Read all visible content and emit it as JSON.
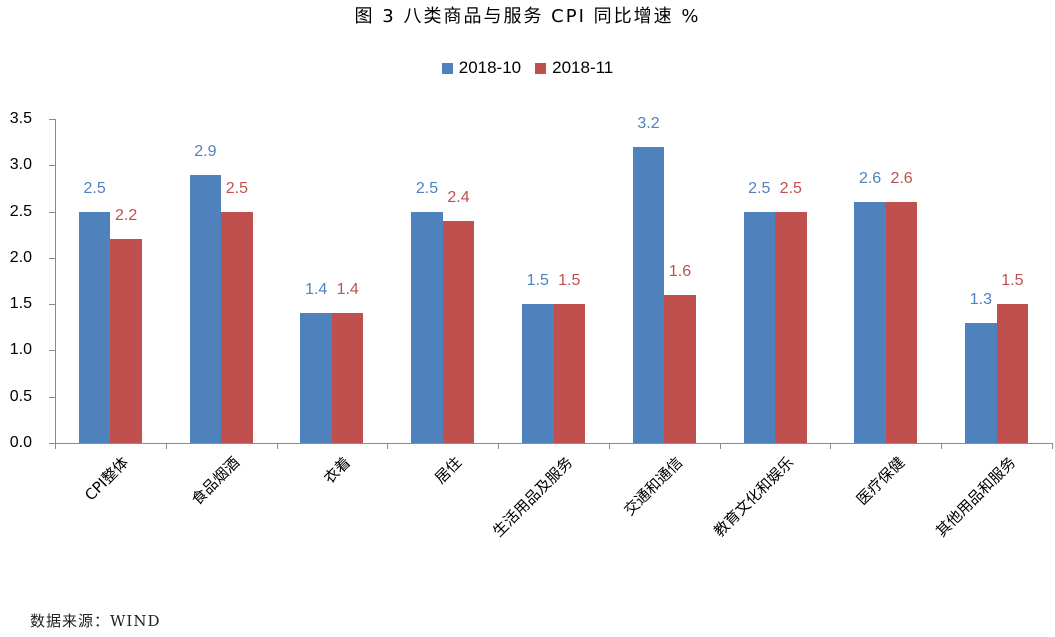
{
  "title": "图 3  八类商品与服务 CPI 同比增速 %",
  "source": "数据来源：WIND",
  "colors": {
    "series1": "#4f81bd",
    "series2": "#c0504d",
    "axis": "#8c8c8c"
  },
  "legend": [
    {
      "label": "2018-10",
      "color": "#4f81bd"
    },
    {
      "label": "2018-11",
      "color": "#c0504d"
    }
  ],
  "chart_data": {
    "type": "bar",
    "title": "图 3  八类商品与服务 CPI 同比增速 %",
    "xlabel": "",
    "ylabel": "",
    "ylim": [
      0,
      3.5
    ],
    "yticks": [
      "0.0",
      "0.5",
      "1.0",
      "1.5",
      "2.0",
      "2.5",
      "3.0",
      "3.5"
    ],
    "grid": false,
    "legend_position": "top",
    "categories": [
      "CPI整体",
      "食品烟酒",
      "衣着",
      "居住",
      "生活用品及服务",
      "交通和通信",
      "教育文化和娱乐",
      "医疗保健",
      "其他用品和服务"
    ],
    "series": [
      {
        "name": "2018-10",
        "color": "#4f81bd",
        "values": [
          2.5,
          2.9,
          1.4,
          2.5,
          1.5,
          3.2,
          2.5,
          2.6,
          1.3
        ]
      },
      {
        "name": "2018-11",
        "color": "#c0504d",
        "values": [
          2.2,
          2.5,
          1.4,
          2.4,
          1.5,
          1.6,
          2.5,
          2.6,
          1.5
        ]
      }
    ],
    "data_labels": true,
    "source": "数据来源：WIND"
  }
}
